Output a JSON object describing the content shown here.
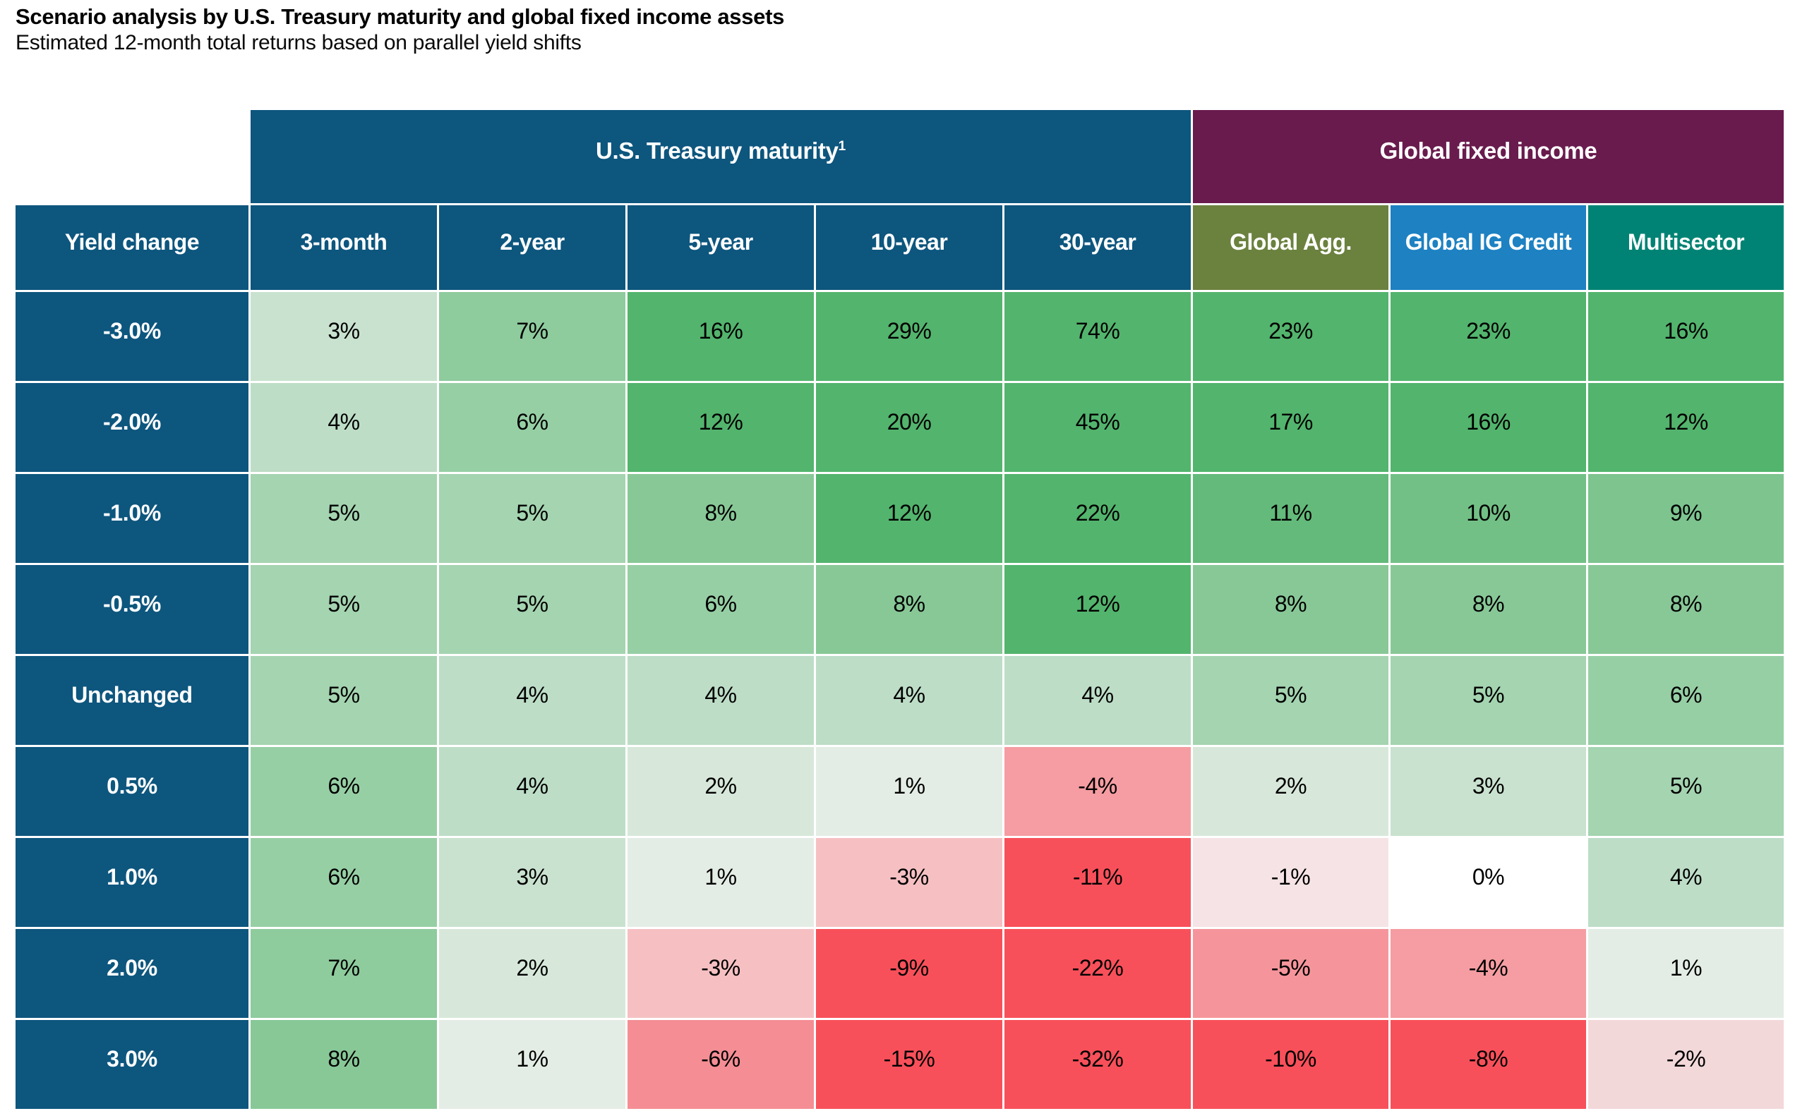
{
  "chart_data": {
    "type": "heatmap",
    "title": "Scenario analysis by U.S. Treasury maturity and global fixed income assets",
    "subtitle": "Estimated 12-month total returns based on parallel yield shifts",
    "corner_header": "Yield change",
    "column_groups": [
      {
        "label": "U.S. Treasury maturity",
        "footnote": "1",
        "columns": 5
      },
      {
        "label": "Global fixed income",
        "footnote": "",
        "columns": 3
      }
    ],
    "columns": [
      "3-month",
      "2-year",
      "5-year",
      "10-year",
      "30-year",
      "Global Agg.",
      "Global IG Credit",
      "Multisector"
    ],
    "row_axis_label": "Yield change",
    "row_labels": [
      "-3.0%",
      "-2.0%",
      "-1.0%",
      "-0.5%",
      "Unchanged",
      "0.5%",
      "1.0%",
      "2.0%",
      "3.0%"
    ],
    "values": [
      [
        3,
        7,
        16,
        29,
        74,
        23,
        23,
        16
      ],
      [
        4,
        6,
        12,
        20,
        45,
        17,
        16,
        12
      ],
      [
        5,
        5,
        8,
        12,
        22,
        11,
        10,
        9
      ],
      [
        5,
        5,
        6,
        8,
        12,
        8,
        8,
        8
      ],
      [
        5,
        4,
        4,
        4,
        4,
        5,
        5,
        6
      ],
      [
        6,
        4,
        2,
        1,
        -4,
        2,
        3,
        5
      ],
      [
        6,
        3,
        1,
        -3,
        -11,
        -1,
        0,
        4
      ],
      [
        7,
        2,
        -3,
        -9,
        -22,
        -5,
        -4,
        1
      ],
      [
        8,
        1,
        -6,
        -15,
        -32,
        -10,
        -8,
        -2
      ]
    ],
    "value_suffix": "%",
    "legend_position": "none",
    "grid": false
  },
  "colors": {
    "group_header_colors": [
      "#0d567e",
      "#691b4d"
    ],
    "column_header_colors": [
      "#0d567e",
      "#0d567e",
      "#0d567e",
      "#0d567e",
      "#0d567e",
      "#6b813e",
      "#1d81c2",
      "#008374"
    ],
    "row_header_color": "#0d567e",
    "header_text": "#ffffff",
    "cell_text": "#000000",
    "heatmap_positive_stops": [
      [
        0,
        "#ffffff"
      ],
      [
        1,
        "#e4ede5"
      ],
      [
        2,
        "#d7e8da"
      ],
      [
        3,
        "#c9e2cf"
      ],
      [
        4,
        "#bdddc7"
      ],
      [
        5,
        "#a4d4b0"
      ],
      [
        6,
        "#97cfa5"
      ],
      [
        7,
        "#8ecb9d"
      ],
      [
        8,
        "#88c897"
      ],
      [
        10,
        "#72c086"
      ],
      [
        12,
        "#53b46d"
      ]
    ],
    "heatmap_negative_stops": [
      [
        -8,
        "#f8505a"
      ],
      [
        -6,
        "#f48e94"
      ],
      [
        -5,
        "#f5959b"
      ],
      [
        -4,
        "#f59da2"
      ],
      [
        -3,
        "#f6c0c3"
      ],
      [
        -2,
        "#f3d8d9"
      ],
      [
        -1,
        "#f5e3e5"
      ],
      [
        0,
        "#ffffff"
      ]
    ]
  },
  "layout": {
    "row_header_col_width": 330,
    "treasury_col_width": 264,
    "global_col_width": 277
  }
}
